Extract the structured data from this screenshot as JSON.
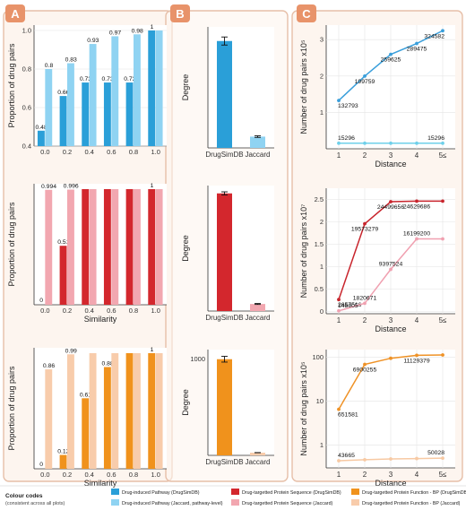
{
  "panels": [
    "A",
    "B",
    "C"
  ],
  "colors": {
    "blue_dark": "#2a9fd8",
    "blue_light": "#8fd3f2",
    "red_dark": "#d3272d",
    "red_light": "#f2a7b0",
    "orange_dark": "#f0921c",
    "orange_light": "#f8ccab",
    "blue_line": "#3a9fdb",
    "cyan_line": "#6fd0ea",
    "red_line": "#c8242c",
    "pink_line": "#f0a0b0",
    "orange_line": "#ef9226",
    "peach_line": "#f7c9a3",
    "panel_frame": "#e6bfa8",
    "panel_fill": "#fdf5ef"
  },
  "legend": {
    "title": "Colour codes",
    "subtitle": "(consistent across all plots)",
    "items": [
      {
        "label": "Drug-induced Pathway (DrugSimDB)",
        "color": "#2a9fd8"
      },
      {
        "label": "Drug-induced Pathway (Jaccard, pathway-level)",
        "color": "#8fd3f2"
      },
      {
        "label": "Drug-targetted Protein Sequence (DrugSimDB)",
        "color": "#d3272d"
      },
      {
        "label": "Drug-targetted Protein Sequence (Jaccard)",
        "color": "#f2a7b0"
      },
      {
        "label": "Drug-targetted Protein Function - BP (DrugSimDB)",
        "color": "#f0921c"
      },
      {
        "label": "Drug-targetted Protein Function - BP (Jaccard)",
        "color": "#f8ccab"
      }
    ]
  },
  "chart_data": [
    {
      "id": "A1",
      "type": "bar",
      "categories": [
        "0.0",
        "0.2",
        "0.4",
        "0.6",
        "0.8",
        "1.0"
      ],
      "ylim": [
        0.4,
        1.0
      ],
      "yticks": [
        "0.4",
        "0.6",
        "0.8",
        "1.0"
      ],
      "xlabel": "",
      "ylabel": "Proportion of drug pairs",
      "series": [
        {
          "values": [
            0.48,
            0.66,
            0.73,
            0.73,
            0.73,
            1.0
          ],
          "labels": [
            "0.48",
            "0.66",
            "0.73",
            "0.73",
            "0.73",
            "1"
          ],
          "color": "#2a9fd8"
        },
        {
          "values": [
            0.8,
            0.83,
            0.93,
            0.97,
            0.98,
            1.0
          ],
          "labels": [
            "0.8",
            "0.83",
            "0.93",
            "0.97",
            "0.98",
            ""
          ],
          "color": "#8fd3f2"
        }
      ]
    },
    {
      "id": "A2",
      "type": "bar",
      "categories": [
        "0.0",
        "0.2",
        "0.4",
        "0.6",
        "0.8",
        "1.0"
      ],
      "ylim": [
        0,
        1.0
      ],
      "yticks": [],
      "xlabel": "Similarity",
      "ylabel": "Proportion of drug pairs",
      "series": [
        {
          "values": [
            0.0,
            0.51,
            1.0,
            1.0,
            1.0,
            1.0
          ],
          "labels": [
            "0",
            "0.51",
            "",
            "",
            "",
            "1"
          ],
          "color": "#d3272d"
        },
        {
          "values": [
            0.994,
            0.996,
            1.0,
            1.0,
            1.0,
            1.0
          ],
          "labels": [
            "0.994",
            "0.996",
            "",
            "",
            "",
            ""
          ],
          "color": "#f2a7b0"
        }
      ]
    },
    {
      "id": "A3",
      "type": "bar",
      "categories": [
        "0.0",
        "0.2",
        "0.4",
        "0.6",
        "0.8",
        "1.0"
      ],
      "ylim": [
        0,
        1.0
      ],
      "yticks": [],
      "xlabel": "Similarity",
      "ylabel": "Proportion of drug pairs",
      "series": [
        {
          "values": [
            0.0,
            0.12,
            0.61,
            0.88,
            1.0,
            1.0
          ],
          "labels": [
            "0",
            "0.12",
            "0.61",
            "0.88",
            "",
            "1"
          ],
          "color": "#f0921c"
        },
        {
          "values": [
            0.86,
            0.99,
            1.0,
            1.0,
            1.0,
            1.0
          ],
          "labels": [
            "0.86",
            "0.99",
            "",
            "",
            "",
            ""
          ],
          "color": "#f8ccab"
        }
      ]
    },
    {
      "id": "B1",
      "type": "bar",
      "categories": [
        "DrugSimDB",
        "Jaccard"
      ],
      "values": [
        265,
        28
      ],
      "errors": [
        10,
        2
      ],
      "ylim": [
        0,
        300
      ],
      "yticks": [],
      "ylabel": "Degree",
      "colors": [
        "#2a9fd8",
        "#8fd3f2"
      ]
    },
    {
      "id": "B2",
      "type": "bar",
      "categories": [
        "DrugSimDB",
        "Jaccard"
      ],
      "values": [
        750,
        45
      ],
      "errors": [
        10,
        3
      ],
      "ylim": [
        0,
        800
      ],
      "yticks": [],
      "ylabel": "Degree",
      "colors": [
        "#d3272d",
        "#f2a7b0"
      ]
    },
    {
      "id": "B3",
      "type": "bar",
      "categories": [
        "DrugSimDB",
        "Jaccard"
      ],
      "values": [
        1000,
        28
      ],
      "errors": [
        30,
        1
      ],
      "ylim": [
        0,
        1100
      ],
      "yticks": [
        "1000"
      ],
      "ylabel": "Degree",
      "colors": [
        "#f0921c",
        "#f8ccab"
      ]
    },
    {
      "id": "C1",
      "type": "line",
      "x": [
        1,
        2,
        3,
        4,
        5
      ],
      "xticks": [
        "1",
        "2",
        "3",
        "4",
        "5≤"
      ],
      "ylim": [
        0,
        3.4
      ],
      "yticks": [
        "1",
        "2",
        "3"
      ],
      "xlabel": "Distance",
      "ylabel": "Number of drug pairs x10⁵",
      "series": [
        {
          "values": [
            1.32793,
            1.99759,
            2.59625,
            2.89475,
            3.24582
          ],
          "labels": [
            "132793",
            "199759",
            "259625",
            "289475",
            "324582"
          ],
          "color": "#3a9fdb"
        },
        {
          "values": [
            0.15296,
            0.15296,
            0.15296,
            0.15296,
            0.15296
          ],
          "labels": [
            "15296",
            "",
            "",
            "",
            "15296"
          ],
          "color": "#6fd0ea"
        }
      ]
    },
    {
      "id": "C2",
      "type": "line",
      "x": [
        1,
        2,
        3,
        4,
        5
      ],
      "xticks": [
        "1",
        "2",
        "3",
        "4",
        "5≤"
      ],
      "ylim": [
        -0.05,
        2.75
      ],
      "yticks": [
        "0",
        "0.5",
        "1",
        "1.5",
        "2",
        "2.5"
      ],
      "xlabel": "Distance",
      "ylabel": "Number of drug pairs x10⁷",
      "series": [
        {
          "values": [
            0.2657516,
            1.9573279,
            2.4499656,
            2.4629686,
            2.4629686
          ],
          "labels": [
            "2657516",
            "19573279",
            "24499656",
            "24629686",
            ""
          ],
          "color": "#c8242c"
        },
        {
          "values": [
            0.0145005,
            0.1820671,
            0.9397524,
            1.61992,
            1.61992
          ],
          "labels": [
            "145005",
            "1820671",
            "9397524",
            "16199200",
            ""
          ],
          "color": "#f0a0b0"
        }
      ]
    },
    {
      "id": "C3",
      "type": "line",
      "yscale": "log",
      "x": [
        1,
        2,
        3,
        4,
        5
      ],
      "xticks": [
        "1",
        "2",
        "3",
        "4",
        "5≤"
      ],
      "ylim": [
        0.3,
        150
      ],
      "yticks": [
        "1",
        "10",
        "100"
      ],
      "xlabel": "Distance",
      "ylabel": "Number of drug pairs x10⁵",
      "series": [
        {
          "values": [
            6.51581,
            69.00255,
            95,
            111.29379,
            113
          ],
          "labels": [
            "651581",
            "6900255",
            "",
            "11129379",
            ""
          ],
          "color": "#ef9226"
        },
        {
          "values": [
            0.43665,
            0.46,
            0.48,
            0.49,
            0.50028
          ],
          "labels": [
            "43665",
            "",
            "",
            "",
            "50028"
          ],
          "color": "#f7c9a3"
        }
      ]
    }
  ]
}
